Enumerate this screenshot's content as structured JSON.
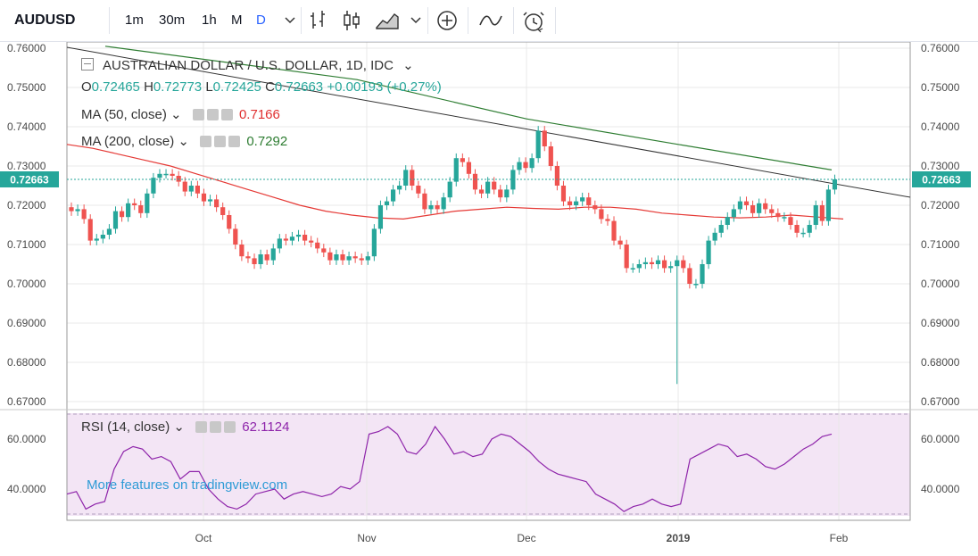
{
  "toolbar": {
    "symbol": "AUDUSD",
    "intervals": [
      "1m",
      "30m",
      "1h",
      "M",
      "D"
    ],
    "active_interval": "D",
    "icons": [
      "chevron-down-icon",
      "bars-icon",
      "candles-icon",
      "area-icon",
      "chevron-down-icon",
      "add-indicator-icon",
      "compare-icon",
      "alert-clock-icon"
    ]
  },
  "legend": {
    "title": "AUSTRALIAN DOLLAR / U.S. DOLLAR, 1D, IDC",
    "o_label": "O",
    "o_value": "0.72465",
    "h_label": "H",
    "h_value": "0.72773",
    "l_label": "L",
    "l_value": "0.72425",
    "c_label": "C",
    "c_value": "0.72663",
    "change": "+0.00193 (+0.27%)",
    "ma50_label": "MA (50, close)",
    "ma50_value": "0.7166",
    "ma200_label": "MA (200, close)",
    "ma200_value": "0.7292",
    "rsi_label": "RSI (14, close)",
    "rsi_value": "62.1124"
  },
  "watermark": "More features on tradingview.com",
  "colors": {
    "up": "#26a69a",
    "down": "#ef5350",
    "ma50": "#e53935",
    "ma200": "#2e7d32",
    "rsi": "#8e24aa",
    "rsi_band": "#f3e5f5",
    "price_tag": "#26a69a"
  },
  "chart_data": [
    {
      "type": "candlestick",
      "title": "AUSTRALIAN DOLLAR / U.S. DOLLAR, 1D, IDC",
      "y_ticks": [
        "0.76000",
        "0.75000",
        "0.74000",
        "0.73000",
        "0.72000",
        "0.71000",
        "0.70000",
        "0.69000",
        "0.68000",
        "0.67000"
      ],
      "ylim": [
        0.668,
        0.761
      ],
      "x_ticks": [
        "Oct",
        "Nov",
        "Dec",
        "2019",
        "Feb"
      ],
      "last_price": "0.72663",
      "candles_close_approx": [
        0.7185,
        0.719,
        0.7165,
        0.711,
        0.7115,
        0.7125,
        0.714,
        0.7185,
        0.717,
        0.7205,
        0.72,
        0.718,
        0.723,
        0.727,
        0.728,
        0.728,
        0.7275,
        0.726,
        0.7235,
        0.725,
        0.723,
        0.721,
        0.7215,
        0.7195,
        0.7175,
        0.714,
        0.71,
        0.707,
        0.7065,
        0.705,
        0.7075,
        0.706,
        0.709,
        0.7115,
        0.711,
        0.712,
        0.7125,
        0.711,
        0.7105,
        0.709,
        0.708,
        0.706,
        0.7075,
        0.706,
        0.707,
        0.7065,
        0.706,
        0.707,
        0.714,
        0.72,
        0.721,
        0.724,
        0.725,
        0.729,
        0.725,
        0.723,
        0.719,
        0.72,
        0.719,
        0.722,
        0.726,
        0.732,
        0.731,
        0.728,
        0.724,
        0.723,
        0.726,
        0.724,
        0.722,
        0.724,
        0.729,
        0.731,
        0.7295,
        0.732,
        0.739,
        0.735,
        0.73,
        0.725,
        0.721,
        0.72,
        0.721,
        0.722,
        0.72,
        0.719,
        0.7165,
        0.716,
        0.711,
        0.71,
        0.704,
        0.704,
        0.705,
        0.7055,
        0.705,
        0.706,
        0.704,
        0.7045,
        0.706,
        0.704,
        0.7,
        0.7,
        0.705,
        0.711,
        0.713,
        0.715,
        0.717,
        0.719,
        0.721,
        0.72,
        0.718,
        0.7205,
        0.719,
        0.718,
        0.717,
        0.717,
        0.715,
        0.713,
        0.713,
        0.715,
        0.72,
        0.716,
        0.724,
        0.7266
      ]
    },
    {
      "type": "line",
      "title": "RSI (14, close)",
      "y_ticks": [
        "60.0000",
        "40.0000"
      ],
      "ylim": [
        28,
        72
      ],
      "last_value": 62.1124
    }
  ]
}
